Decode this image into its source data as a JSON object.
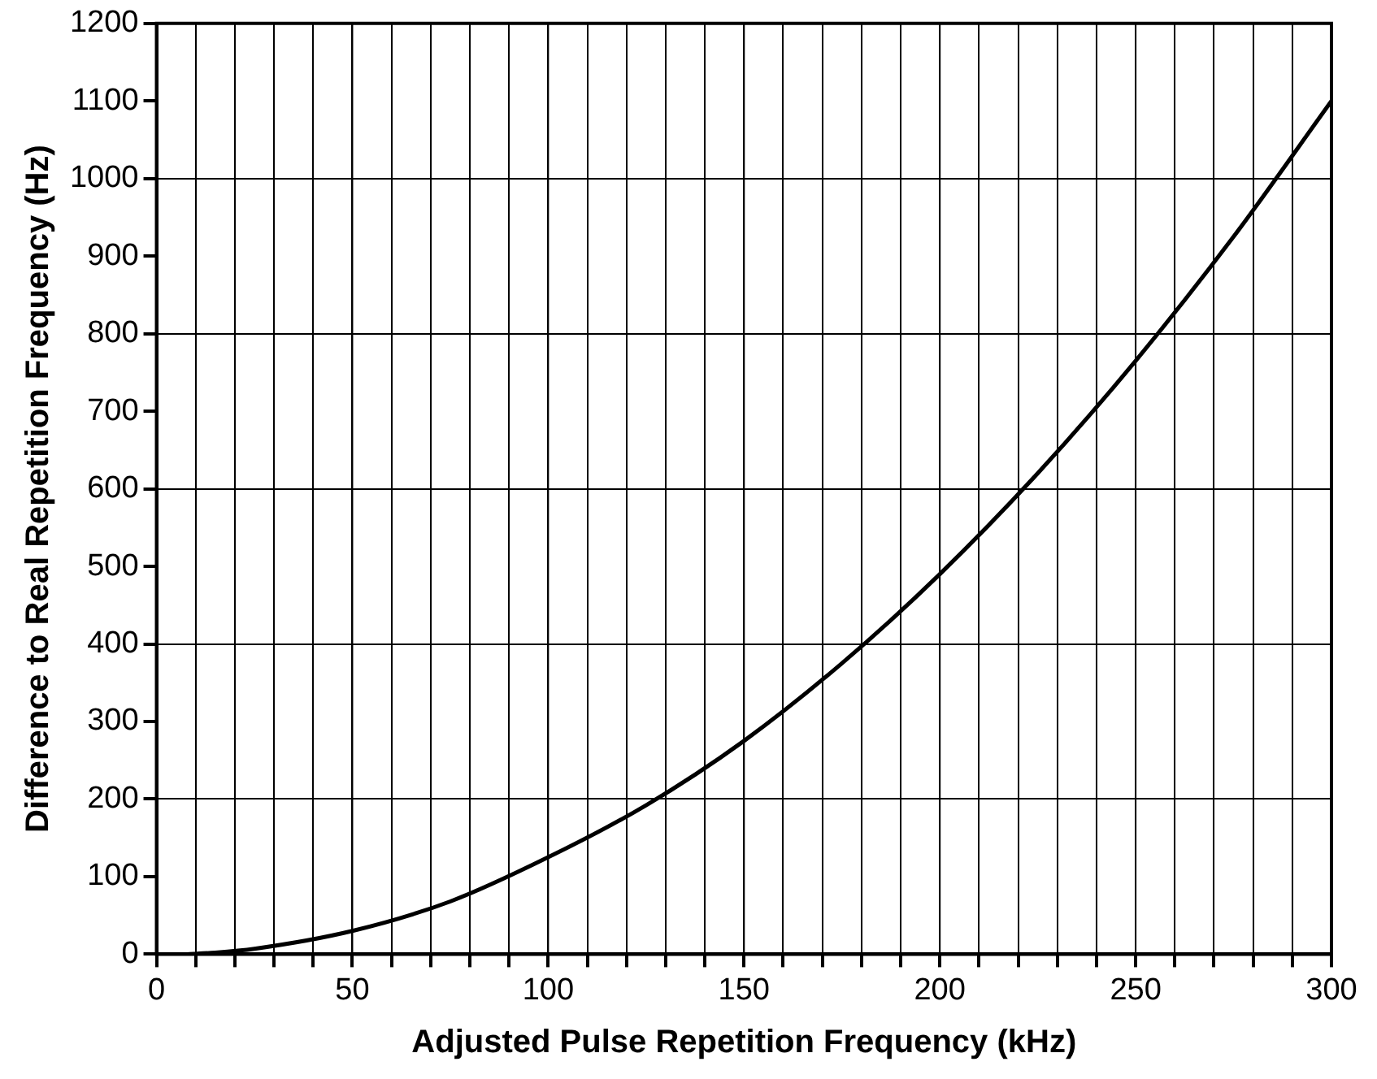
{
  "chart_data": {
    "type": "line",
    "xlabel": "Adjusted Pulse Repetition Frequency (kHz)",
    "ylabel": "Difference to Real Repetition Frequency (Hz)",
    "x": [
      8,
      15,
      25,
      50,
      75,
      100,
      125,
      150,
      175,
      200,
      225,
      250,
      275,
      300
    ],
    "series": [
      {
        "color": "#000000",
        "values": [
          0,
          2,
          7,
          30,
          68,
          125,
          192,
          275,
          375,
          490,
          620,
          765,
          925,
          1100
        ]
      }
    ],
    "xlim": [
      0,
      300
    ],
    "ylim": [
      0,
      1200
    ],
    "xticks": [
      0,
      {
        "value": 10,
        "label": null
      },
      {
        "value": 20,
        "label": null
      },
      {
        "value": 30,
        "label": null
      },
      {
        "value": 40,
        "label": null
      },
      50,
      {
        "value": 60,
        "label": null
      },
      {
        "value": 70,
        "label": null
      },
      {
        "value": 80,
        "label": null
      },
      {
        "value": 90,
        "label": null
      },
      100,
      {
        "value": 110,
        "label": null
      },
      {
        "value": 120,
        "label": null
      },
      {
        "value": 130,
        "label": null
      },
      {
        "value": 140,
        "label": null
      },
      150,
      {
        "value": 160,
        "label": null
      },
      {
        "value": 170,
        "label": null
      },
      {
        "value": 180,
        "label": null
      },
      {
        "value": 190,
        "label": null
      },
      200,
      {
        "value": 210,
        "label": null
      },
      {
        "value": 220,
        "label": null
      },
      {
        "value": 230,
        "label": null
      },
      {
        "value": 240,
        "label": null
      },
      250,
      {
        "value": 260,
        "label": null
      },
      {
        "value": 270,
        "label": null
      },
      {
        "value": 280,
        "label": null
      },
      {
        "value": 290,
        "label": null
      },
      300
    ],
    "yticks": [
      0,
      100,
      200,
      300,
      400,
      500,
      600,
      700,
      800,
      900,
      1000,
      1100,
      1200
    ],
    "grid": true,
    "legend": false,
    "marker": "none",
    "line_style": "solid"
  }
}
